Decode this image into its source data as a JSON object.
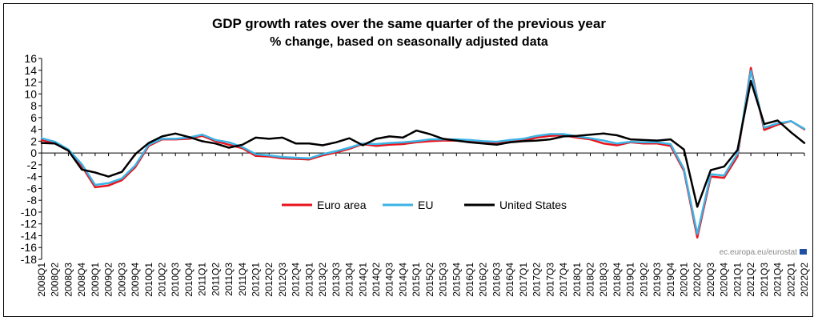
{
  "chart_data": {
    "type": "line",
    "title": "GDP growth rates over the same quarter of the previous year",
    "subtitle": "% change, based on seasonally adjusted data",
    "xlabel": "",
    "ylabel": "",
    "ylim": [
      -18,
      16
    ],
    "yticks": [
      16,
      14,
      12,
      10,
      8,
      6,
      4,
      2,
      0,
      -2,
      -4,
      -6,
      -8,
      -10,
      -12,
      -14,
      -16,
      -18
    ],
    "grid": false,
    "legend": "inside-center",
    "categories": [
      "2008Q1",
      "2008Q2",
      "2008Q3",
      "2008Q4",
      "2009Q1",
      "2009Q2",
      "2009Q3",
      "2009Q4",
      "2010Q1",
      "2010Q2",
      "2010Q3",
      "2010Q4",
      "2011Q1",
      "2011Q2",
      "2011Q3",
      "2011Q4",
      "2012Q1",
      "2012Q2",
      "2012Q3",
      "2012Q4",
      "2013Q1",
      "2013Q2",
      "2013Q3",
      "2013Q4",
      "2014Q1",
      "2014Q2",
      "2014Q3",
      "2014Q4",
      "2015Q1",
      "2015Q2",
      "2015Q3",
      "2015Q4",
      "2016Q1",
      "2016Q2",
      "2016Q3",
      "2016Q4",
      "2017Q1",
      "2017Q2",
      "2017Q3",
      "2017Q4",
      "2018Q1",
      "2018Q2",
      "2018Q3",
      "2018Q4",
      "2019Q1",
      "2019Q2",
      "2019Q3",
      "2019Q4",
      "2020Q1",
      "2020Q2",
      "2020Q3",
      "2020Q4",
      "2021Q1",
      "2021Q2",
      "2021Q3",
      "2021Q4",
      "2022Q1",
      "2022Q2"
    ],
    "series": [
      {
        "name": "Euro area",
        "color": "#e8141c",
        "values": [
          2.2,
          1.6,
          0.4,
          -2.2,
          -5.8,
          -5.5,
          -4.6,
          -2.4,
          1.2,
          2.3,
          2.3,
          2.4,
          2.9,
          2.0,
          1.4,
          0.8,
          -0.5,
          -0.6,
          -0.9,
          -1.0,
          -1.1,
          -0.4,
          0.1,
          0.7,
          1.5,
          1.2,
          1.4,
          1.5,
          1.8,
          2.0,
          2.1,
          2.1,
          2.0,
          1.8,
          1.7,
          1.9,
          2.1,
          2.6,
          2.9,
          3.0,
          2.6,
          2.3,
          1.6,
          1.3,
          1.8,
          1.6,
          1.6,
          1.2,
          -3.0,
          -14.3,
          -4.0,
          -4.2,
          -0.6,
          14.4,
          3.9,
          4.8,
          5.4,
          4.0
        ]
      },
      {
        "name": "EU",
        "color": "#3cb4e6",
        "values": [
          2.5,
          1.9,
          0.6,
          -1.9,
          -5.4,
          -5.1,
          -4.3,
          -2.1,
          1.4,
          2.4,
          2.4,
          2.6,
          3.1,
          2.2,
          1.8,
          1.0,
          -0.2,
          -0.4,
          -0.7,
          -0.8,
          -0.9,
          -0.2,
          0.3,
          0.9,
          1.6,
          1.5,
          1.7,
          1.8,
          2.0,
          2.3,
          2.3,
          2.3,
          2.2,
          2.0,
          1.9,
          2.2,
          2.4,
          2.9,
          3.2,
          3.2,
          2.8,
          2.5,
          2.1,
          1.6,
          1.9,
          1.8,
          1.8,
          1.5,
          -2.7,
          -13.7,
          -3.6,
          -3.8,
          -0.1,
          13.9,
          4.3,
          5.0,
          5.4,
          4.1
        ]
      },
      {
        "name": "United States",
        "color": "#000000",
        "values": [
          1.7,
          1.6,
          0.4,
          -2.8,
          -3.3,
          -4.0,
          -3.2,
          -0.2,
          1.7,
          2.8,
          3.3,
          2.7,
          2.0,
          1.6,
          0.9,
          1.4,
          2.6,
          2.4,
          2.6,
          1.6,
          1.6,
          1.3,
          1.8,
          2.5,
          1.3,
          2.4,
          2.8,
          2.6,
          3.8,
          3.2,
          2.4,
          2.1,
          1.8,
          1.6,
          1.4,
          1.8,
          2.0,
          2.1,
          2.3,
          2.8,
          2.9,
          3.1,
          3.3,
          3.0,
          2.3,
          2.2,
          2.1,
          2.3,
          0.6,
          -9.1,
          -2.9,
          -2.3,
          0.5,
          12.2,
          4.9,
          5.5,
          3.5,
          1.7
        ]
      }
    ],
    "source": "ec.europa.eu/eurostat"
  }
}
